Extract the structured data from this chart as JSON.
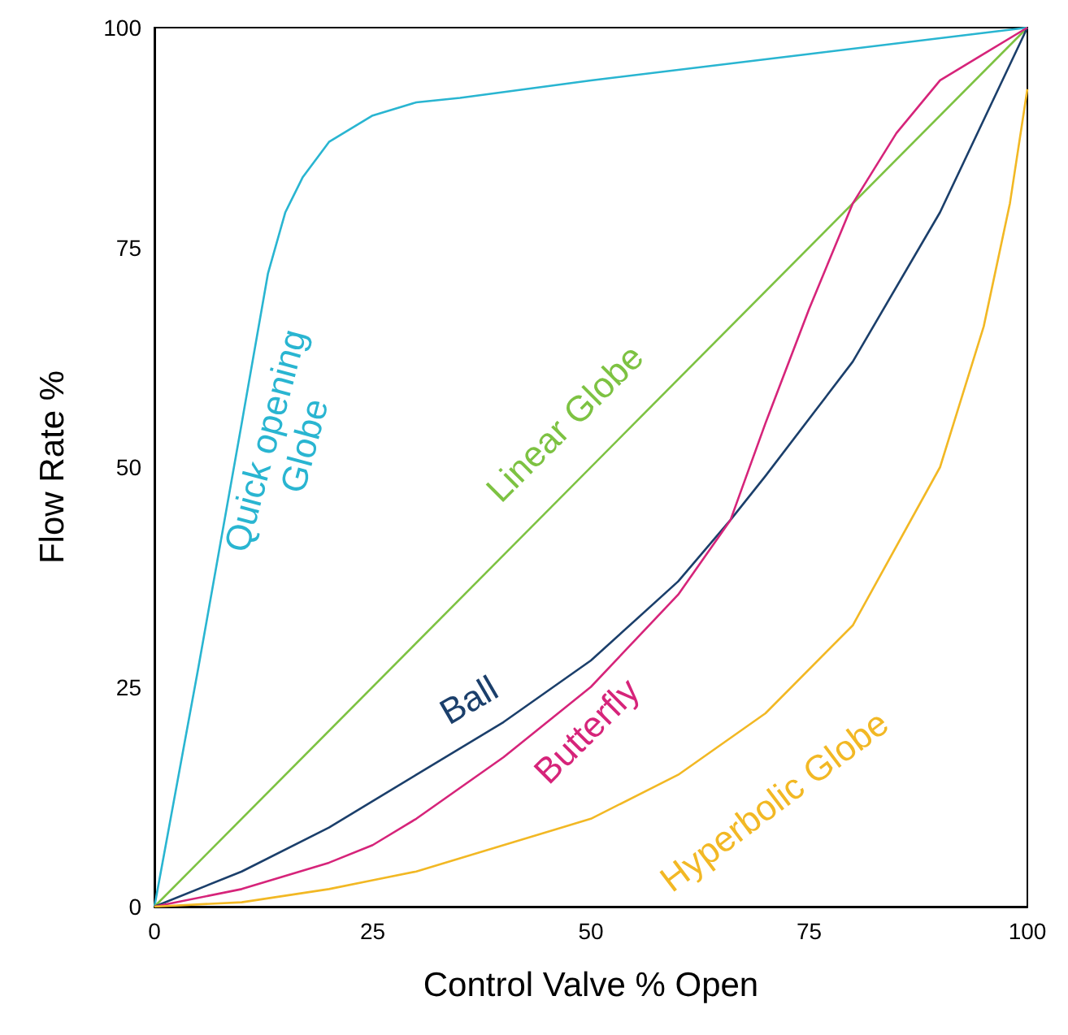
{
  "chart_data": {
    "type": "line",
    "xlabel": "Control Valve % Open",
    "ylabel": "Flow Rate %",
    "xlim": [
      0,
      100
    ],
    "ylim": [
      0,
      100
    ],
    "xticks": [
      0,
      25,
      50,
      75,
      100
    ],
    "yticks": [
      0,
      25,
      50,
      75,
      100
    ],
    "marker": "none",
    "series": [
      {
        "name": "Quick opening Globe",
        "color": "#29b5d1",
        "x": [
          0,
          5,
          10,
          13,
          15,
          17,
          20,
          25,
          30,
          35,
          50,
          75,
          100
        ],
        "values": [
          0,
          27,
          55,
          72,
          79,
          83,
          87,
          90,
          91.5,
          92,
          94,
          97,
          100
        ]
      },
      {
        "name": "Linear Globe",
        "color": "#7dc242",
        "x": [
          0,
          100
        ],
        "values": [
          0,
          100
        ]
      },
      {
        "name": "Ball",
        "color": "#1b3f6b",
        "x": [
          0,
          10,
          20,
          25,
          30,
          40,
          50,
          60,
          66,
          70,
          80,
          90,
          100
        ],
        "values": [
          0,
          4,
          9,
          12,
          15,
          21,
          28,
          37,
          44,
          49,
          62,
          79,
          100
        ]
      },
      {
        "name": "Butterfly",
        "color": "#d6247a",
        "x": [
          0,
          10,
          20,
          25,
          30,
          40,
          50,
          60,
          66,
          70,
          75,
          80,
          85,
          90,
          95,
          100
        ],
        "values": [
          0,
          2,
          5,
          7,
          10,
          17,
          25,
          35.5,
          44,
          55,
          68,
          80,
          88,
          94,
          97,
          100
        ]
      },
      {
        "name": "Hyperbolic Globe",
        "color": "#f2b824",
        "x": [
          0,
          10,
          20,
          25,
          30,
          40,
          50,
          60,
          70,
          80,
          90,
          95,
          98,
          100
        ],
        "values": [
          0,
          0.5,
          2,
          3,
          4,
          7,
          10,
          15,
          22,
          32,
          50,
          66,
          80,
          93
        ]
      }
    ]
  }
}
